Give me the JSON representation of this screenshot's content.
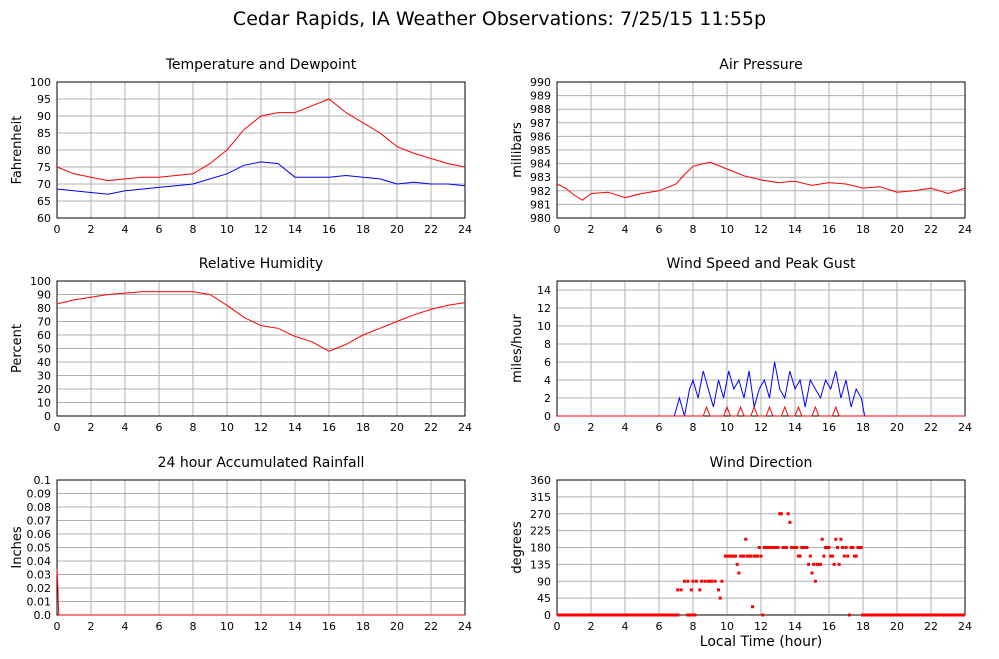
{
  "page": {
    "title": "Cedar Rapids, IA Weather Observations: 7/25/15 11:55p"
  },
  "x_axis_label": "Local Time (hour)",
  "chart_data": [
    {
      "id": "temp",
      "type": "line",
      "title": "Temperature and Dewpoint",
      "ylabel": "Fahrenheit",
      "xlabel": "",
      "xlim": [
        0,
        24
      ],
      "ylim": [
        60,
        100
      ],
      "xticks": [
        0,
        2,
        4,
        6,
        8,
        10,
        12,
        14,
        16,
        18,
        20,
        22,
        24
      ],
      "yticks": [
        60,
        65,
        70,
        75,
        80,
        85,
        90,
        95,
        100
      ],
      "grid": true,
      "series": [
        {
          "color": "#ff0000",
          "x": [
            0,
            1,
            2,
            3,
            4,
            5,
            6,
            7,
            8,
            9,
            10,
            11,
            12,
            13,
            14,
            15,
            16,
            17,
            18,
            19,
            20,
            21,
            22,
            23,
            24
          ],
          "y": [
            75,
            73,
            72,
            71,
            71.5,
            72,
            72,
            72.5,
            73,
            76,
            80,
            86,
            90,
            91,
            91,
            93,
            95,
            91,
            88,
            85,
            81,
            79,
            77.5,
            76,
            75
          ]
        },
        {
          "color": "#0000ff",
          "x": [
            0,
            1,
            2,
            3,
            4,
            5,
            6,
            7,
            8,
            9,
            10,
            11,
            12,
            13,
            14,
            15,
            16,
            17,
            18,
            19,
            20,
            21,
            22,
            23,
            24
          ],
          "y": [
            68.5,
            68,
            67.5,
            67,
            68,
            68.5,
            69,
            69.5,
            70,
            71.5,
            73,
            75.5,
            76.5,
            76,
            72,
            72,
            72,
            72.5,
            72,
            71.5,
            70,
            70.5,
            70,
            70,
            69.5
          ]
        }
      ]
    },
    {
      "id": "pressure",
      "type": "line",
      "title": "Air Pressure",
      "ylabel": "millibars",
      "xlabel": "",
      "xlim": [
        0,
        24
      ],
      "ylim": [
        980,
        990
      ],
      "xticks": [
        0,
        2,
        4,
        6,
        8,
        10,
        12,
        14,
        16,
        18,
        20,
        22,
        24
      ],
      "yticks": [
        980,
        981,
        982,
        983,
        984,
        985,
        986,
        987,
        988,
        989,
        990
      ],
      "grid": true,
      "series": [
        {
          "color": "#ff0000",
          "x": [
            0,
            0.5,
            1,
            1.5,
            2,
            3,
            4,
            5,
            6,
            7,
            7.5,
            8,
            9,
            10,
            11,
            12,
            13,
            14,
            15,
            16,
            17,
            18,
            19,
            20,
            21,
            22,
            23,
            24
          ],
          "y": [
            982.5,
            982.2,
            981.7,
            981.3,
            981.8,
            981.9,
            981.5,
            981.8,
            982,
            982.5,
            983.2,
            983.8,
            984.1,
            983.6,
            983.1,
            982.8,
            982.6,
            982.7,
            982.4,
            982.6,
            982.5,
            982.2,
            982.3,
            981.9,
            982,
            982.2,
            981.8,
            982.2
          ]
        }
      ]
    },
    {
      "id": "humidity",
      "type": "line",
      "title": "Relative Humidity",
      "ylabel": "Percent",
      "xlabel": "",
      "xlim": [
        0,
        24
      ],
      "ylim": [
        0,
        100
      ],
      "xticks": [
        0,
        2,
        4,
        6,
        8,
        10,
        12,
        14,
        16,
        18,
        20,
        22,
        24
      ],
      "yticks": [
        0,
        10,
        20,
        30,
        40,
        50,
        60,
        70,
        80,
        90,
        100
      ],
      "grid": true,
      "series": [
        {
          "color": "#ff0000",
          "x": [
            0,
            1,
            2,
            3,
            4,
            5,
            6,
            7,
            8,
            9,
            10,
            11,
            12,
            13,
            14,
            15,
            16,
            17,
            18,
            19,
            20,
            21,
            22,
            23,
            24
          ],
          "y": [
            83,
            86,
            88,
            90,
            91,
            92,
            92,
            92,
            92,
            90,
            82,
            73,
            67,
            65,
            59,
            55,
            48,
            53,
            60,
            65,
            70,
            75,
            79,
            82,
            84
          ]
        }
      ]
    },
    {
      "id": "wind",
      "type": "line",
      "title": "Wind Speed and Peak Gust",
      "ylabel": "miles/hour",
      "xlabel": "",
      "xlim": [
        0,
        24
      ],
      "ylim": [
        0,
        15
      ],
      "xticks": [
        0,
        2,
        4,
        6,
        8,
        10,
        12,
        14,
        16,
        18,
        20,
        22,
        24
      ],
      "yticks": [
        0,
        2,
        4,
        6,
        8,
        10,
        12,
        14
      ],
      "grid": true,
      "series": [
        {
          "color": "#0000ff",
          "x": [
            0,
            6.9,
            7.2,
            7.5,
            7.8,
            8,
            8.3,
            8.6,
            8.9,
            9.2,
            9.5,
            9.8,
            10.1,
            10.4,
            10.7,
            11,
            11.3,
            11.6,
            11.9,
            12.2,
            12.5,
            12.8,
            13.1,
            13.4,
            13.7,
            14,
            14.3,
            14.6,
            14.9,
            15.2,
            15.5,
            15.8,
            16.1,
            16.4,
            16.7,
            17,
            17.3,
            17.6,
            17.9,
            18.1,
            24
          ],
          "y": [
            0,
            0,
            2,
            0,
            3,
            4,
            2,
            5,
            3,
            1,
            4,
            2,
            5,
            3,
            4,
            2,
            5,
            1,
            3,
            4,
            2,
            6,
            3,
            2,
            5,
            3,
            4,
            1,
            4,
            3,
            2,
            4,
            3,
            5,
            2,
            4,
            1,
            3,
            2,
            0,
            0
          ]
        },
        {
          "color": "#ff0000",
          "x": [
            0,
            8.6,
            8.8,
            9,
            9.8,
            10,
            10.2,
            10.6,
            10.8,
            11,
            11.4,
            11.6,
            11.8,
            12.3,
            12.5,
            12.7,
            13.2,
            13.4,
            13.6,
            14,
            14.2,
            14.4,
            15,
            15.2,
            15.4,
            16.2,
            16.4,
            16.6,
            24
          ],
          "y": [
            0,
            0,
            1,
            0,
            0,
            1,
            0,
            0,
            1,
            0,
            0,
            1,
            0,
            0,
            1,
            0,
            0,
            1,
            0,
            0,
            1,
            0,
            0,
            1,
            0,
            0,
            1,
            0,
            0
          ]
        }
      ]
    },
    {
      "id": "rain",
      "type": "line",
      "title": "24 hour Accumulated Rainfall",
      "ylabel": "Inches",
      "xlabel": "",
      "xlim": [
        0,
        24
      ],
      "ylim": [
        0,
        0.1
      ],
      "xticks": [
        0,
        2,
        4,
        6,
        8,
        10,
        12,
        14,
        16,
        18,
        20,
        22,
        24
      ],
      "yticks": [
        0.0,
        0.01,
        0.02,
        0.03,
        0.04,
        0.05,
        0.06,
        0.07,
        0.08,
        0.09,
        0.1
      ],
      "ytick_labels": [
        "0.0",
        "0.01",
        "0.02",
        "0.03",
        "0.04",
        "0.05",
        "0.06",
        "0.07",
        "0.08",
        "0.09",
        "0.1"
      ],
      "grid": true,
      "series": [
        {
          "color": "#ff0000",
          "x": [
            0,
            0.05,
            0.1,
            24
          ],
          "y": [
            0.034,
            0.02,
            0,
            0
          ]
        }
      ]
    },
    {
      "id": "direction",
      "type": "scatter",
      "title": "Wind Direction",
      "ylabel": "degrees",
      "xlabel": "Local Time (hour)",
      "xlim": [
        0,
        24
      ],
      "ylim": [
        0,
        360
      ],
      "xticks": [
        0,
        2,
        4,
        6,
        8,
        10,
        12,
        14,
        16,
        18,
        20,
        22,
        24
      ],
      "yticks": [
        0,
        45,
        90,
        135,
        180,
        225,
        270,
        315,
        360
      ],
      "grid": true,
      "baseline_segments": [
        [
          0,
          7.2
        ],
        [
          7.6,
          8.2
        ],
        [
          17.9,
          24
        ]
      ],
      "series": [
        {
          "color": "#ff0000",
          "x": [
            7.1,
            7.3,
            7.5,
            7.7,
            7.9,
            8,
            8.2,
            8.4,
            8.5,
            8.7,
            8.9,
            9,
            9.1,
            9.3,
            9.5,
            9.6,
            9.7,
            9.9,
            10,
            10.1,
            10.2,
            10.3,
            10.4,
            10.5,
            10.6,
            10.7,
            10.8,
            10.9,
            11,
            11.1,
            11.2,
            11.3,
            11.4,
            11.5,
            11.6,
            11.7,
            11.8,
            11.9,
            12,
            12.1,
            12.2,
            12.3,
            12.4,
            12.5,
            12.6,
            12.7,
            12.8,
            12.9,
            13,
            13.1,
            13.2,
            13.3,
            13.4,
            13.5,
            13.6,
            13.7,
            13.8,
            13.9,
            14,
            14.1,
            14.2,
            14.3,
            14.4,
            14.5,
            14.6,
            14.7,
            14.8,
            14.9,
            15,
            15.1,
            15.2,
            15.3,
            15.4,
            15.5,
            15.6,
            15.7,
            15.8,
            15.9,
            16,
            16.1,
            16.2,
            16.3,
            16.4,
            16.5,
            16.6,
            16.7,
            16.8,
            16.9,
            17,
            17.1,
            17.2,
            17.3,
            17.4,
            17.5,
            17.6,
            17.7,
            17.8,
            17.9
          ],
          "y": [
            67,
            67,
            90,
            90,
            67,
            90,
            90,
            67,
            90,
            90,
            90,
            90,
            90,
            90,
            67,
            45,
            90,
            157,
            157,
            157,
            157,
            157,
            157,
            157,
            135,
            112,
            157,
            157,
            157,
            202,
            157,
            157,
            157,
            22,
            157,
            157,
            157,
            180,
            157,
            0,
            180,
            180,
            180,
            180,
            180,
            180,
            180,
            180,
            180,
            270,
            270,
            180,
            180,
            180,
            270,
            247,
            180,
            180,
            180,
            180,
            157,
            157,
            180,
            180,
            180,
            180,
            135,
            157,
            112,
            135,
            90,
            135,
            135,
            135,
            202,
            157,
            180,
            180,
            180,
            157,
            157,
            135,
            202,
            180,
            135,
            202,
            180,
            157,
            180,
            157,
            0,
            180,
            180,
            157,
            157,
            180,
            180,
            180
          ]
        }
      ]
    }
  ]
}
